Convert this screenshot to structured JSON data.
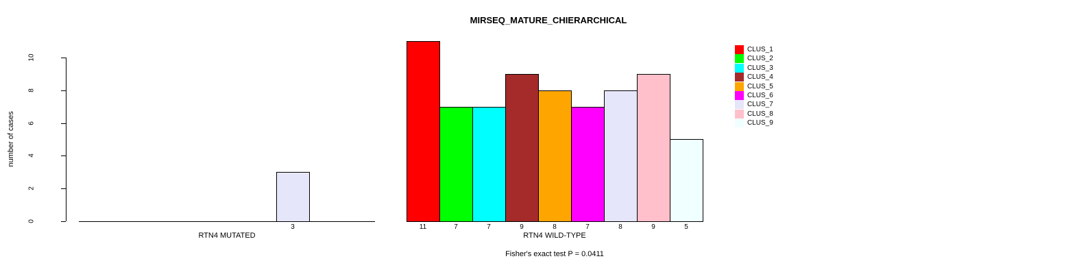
{
  "chart_data": {
    "type": "bar",
    "title": "MIRSEQ_MATURE_CHIERARCHICAL",
    "ylabel": "number of cases",
    "ylim": [
      0,
      10
    ],
    "yticks": [
      0,
      2,
      4,
      6,
      8,
      10
    ],
    "grid": false,
    "legend_position": "right",
    "clusters": [
      {
        "name": "CLUS_1",
        "color": "#FF0000"
      },
      {
        "name": "CLUS_2",
        "color": "#00FF00"
      },
      {
        "name": "CLUS_3",
        "color": "#00FFFF"
      },
      {
        "name": "CLUS_4",
        "color": "#A52A2A"
      },
      {
        "name": "CLUS_5",
        "color": "#FFA500"
      },
      {
        "name": "CLUS_6",
        "color": "#FF00FF"
      },
      {
        "name": "CLUS_7",
        "color": "#E6E6FA"
      },
      {
        "name": "CLUS_8",
        "color": "#FFC0CB"
      },
      {
        "name": "CLUS_9",
        "color": "#F0FFFF"
      }
    ],
    "groups": [
      {
        "label": "RTN4 MUTATED",
        "values": [
          0,
          0,
          0,
          0,
          0,
          0,
          3,
          0,
          0
        ]
      },
      {
        "label": "RTN4 WILD-TYPE",
        "values": [
          11,
          7,
          7,
          9,
          8,
          7,
          8,
          9,
          5
        ]
      }
    ],
    "annotation": "Fisher's exact test P = 0.0411"
  }
}
